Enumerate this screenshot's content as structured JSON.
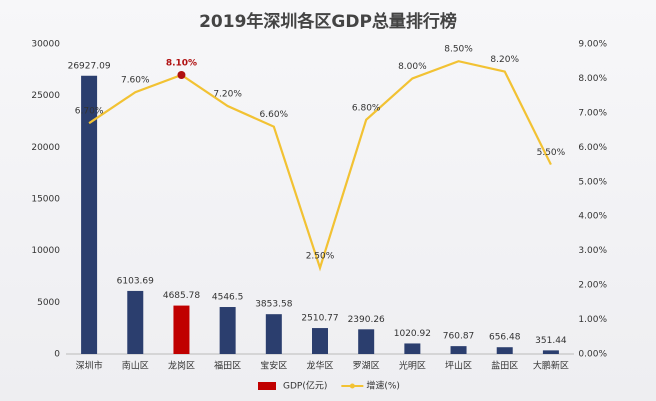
{
  "chart_data": {
    "type": "bar-line",
    "title": "2019年深圳各区GDP总量排行榜",
    "categories": [
      "深圳市",
      "南山区",
      "龙岗区",
      "福田区",
      "宝安区",
      "龙华区",
      "罗湖区",
      "光明区",
      "坪山区",
      "盐田区",
      "大鹏新区"
    ],
    "series": [
      {
        "name": "GDP(亿元)",
        "type": "bar",
        "color": "#c00000",
        "colors": [
          "#2b3e6e",
          "#2b3e6e",
          "#c00000",
          "#2b3e6e",
          "#2b3e6e",
          "#2b3e6e",
          "#2b3e6e",
          "#2b3e6e",
          "#2b3e6e",
          "#2b3e6e",
          "#2b3e6e"
        ],
        "values": [
          26927.09,
          6103.69,
          4685.78,
          4546.5,
          3853.58,
          2510.77,
          2390.26,
          1020.92,
          760.87,
          656.48,
          351.44
        ]
      },
      {
        "name": "增速(%)",
        "type": "line",
        "axis": "y2",
        "color": "#f2c233",
        "marker_colors": [
          "none",
          "none",
          "#b01010",
          "none",
          "none",
          "none",
          "none",
          "none",
          "none",
          "none",
          "none"
        ],
        "values": [
          6.7,
          7.6,
          8.1,
          7.2,
          6.6,
          2.5,
          6.8,
          8.0,
          8.5,
          8.2,
          5.5
        ],
        "value_labels": [
          "6.70%",
          "7.60%",
          "8.10%",
          "7.20%",
          "6.60%",
          "2.50%",
          "6.80%",
          "8.00%",
          "8.50%",
          "8.20%",
          "5.50%"
        ]
      }
    ],
    "ylim": [
      0,
      30000
    ],
    "yticks": [
      0,
      5000,
      10000,
      15000,
      20000,
      25000,
      30000
    ],
    "y2lim": [
      0,
      9
    ],
    "y2ticks": [
      {
        "value": 0,
        "label": "0.00%"
      },
      {
        "value": 1,
        "label": "1.00%"
      },
      {
        "value": 2,
        "label": "2.00%"
      },
      {
        "value": 3,
        "label": "3.00%"
      },
      {
        "value": 4,
        "label": "4.00%"
      },
      {
        "value": 5,
        "label": "5.00%"
      },
      {
        "value": 6,
        "label": "6.00%"
      },
      {
        "value": 7,
        "label": "7.00%"
      },
      {
        "value": 8,
        "label": "8.00%"
      },
      {
        "value": 9,
        "label": "9.00%"
      }
    ],
    "grid": false,
    "legend": "bottom"
  }
}
